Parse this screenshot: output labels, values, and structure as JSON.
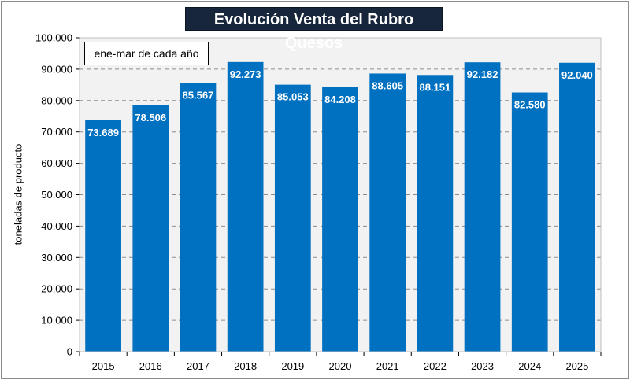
{
  "chart_data": {
    "type": "bar",
    "title": "Evolución Venta del Rubro Quesos",
    "annotation": "ene-mar de cada año",
    "xlabel": "",
    "ylabel": "toneladas de producto",
    "categories": [
      "2015",
      "2016",
      "2017",
      "2018",
      "2019",
      "2020",
      "2021",
      "2022",
      "2023",
      "2024",
      "2025"
    ],
    "values": [
      73689,
      78506,
      85567,
      92273,
      85053,
      84208,
      88605,
      88151,
      92182,
      82580,
      92040
    ],
    "value_labels": [
      "73.689",
      "78.506",
      "85.567",
      "92.273",
      "85.053",
      "84.208",
      "88.605",
      "88.151",
      "92.182",
      "82.580",
      "92.040"
    ],
    "ylim": [
      0,
      100000
    ],
    "yticks": [
      0,
      10000,
      20000,
      30000,
      40000,
      50000,
      60000,
      70000,
      80000,
      90000,
      100000
    ],
    "ytick_labels": [
      "0",
      "10.000",
      "20.000",
      "30.000",
      "40.000",
      "50.000",
      "60.000",
      "70.000",
      "80.000",
      "90.000",
      "100.000"
    ],
    "grid": true,
    "bar_color": "#0070c0",
    "plot_background": "#f2f2f2"
  }
}
